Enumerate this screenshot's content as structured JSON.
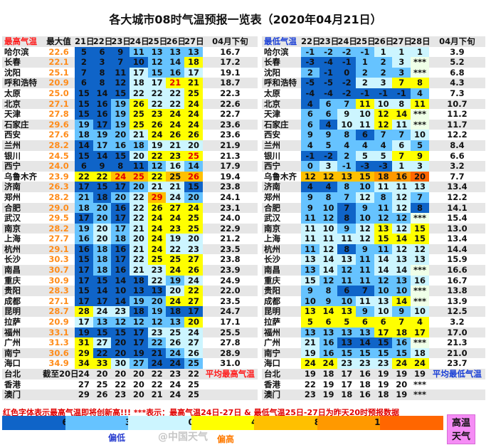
{
  "title": "各大城市08时气温预报一览表（2020年04月21日）",
  "colors": {
    "dark_blue": "#0f64c8",
    "mid_blue": "#66c3ff",
    "light_blue": "#ccf5ff",
    "yellow": "#ffff00",
    "orange1": "#ffc000",
    "orange2": "#ff9900",
    "orange3": "#ff6600",
    "missing": "#efffe8",
    "hot_box": "#f58cf5"
  },
  "high": {
    "header": [
      "最高气温",
      "最大值",
      "21日",
      "22日",
      "23日",
      "24日",
      "25日",
      "26日",
      "27日",
      "04月下旬"
    ],
    "rows": [
      {
        "city": "哈尔滨",
        "max": "22.6",
        "v": [
          5,
          6,
          9,
          11,
          13,
          13,
          13
        ],
        "avg": "16.7",
        "red": []
      },
      {
        "city": "长春",
        "max": "22.1",
        "v": [
          2,
          3,
          7,
          10,
          12,
          14,
          18
        ],
        "avg": "17.2",
        "red": []
      },
      {
        "city": "沈阳",
        "max": "25.1",
        "v": [
          7,
          8,
          11,
          17,
          15,
          16,
          17
        ],
        "avg": "19.1",
        "red": []
      },
      {
        "city": "呼和浩特",
        "max": "20.9",
        "v": [
          6,
          8,
          12,
          18,
          17,
          21,
          21
        ],
        "avg": "18.7",
        "red": [
          5
        ]
      },
      {
        "city": "太原",
        "max": "25.0",
        "v": [
          15,
          14,
          15,
          22,
          22,
          22,
          25
        ],
        "avg": "22.3",
        "red": []
      },
      {
        "city": "北京",
        "max": "27.1",
        "v": [
          15,
          16,
          19,
          26,
          22,
          22,
          24
        ],
        "avg": "22.6",
        "red": []
      },
      {
        "city": "天津",
        "max": "27.8",
        "v": [
          15,
          16,
          19,
          25,
          23,
          24,
          24
        ],
        "avg": "22.7",
        "red": []
      },
      {
        "city": "石家庄",
        "max": "29.6",
        "v": [
          19,
          17,
          19,
          25,
          26,
          24,
          24
        ],
        "avg": "23.6",
        "red": []
      },
      {
        "city": "西安",
        "max": "27.6",
        "v": [
          18,
          19,
          20,
          21,
          24,
          26,
          26
        ],
        "avg": "23.6",
        "red": []
      },
      {
        "city": "兰州",
        "max": "28.2",
        "v": [
          14,
          17,
          16,
          18,
          19,
          21,
          20
        ],
        "avg": "21.9",
        "red": []
      },
      {
        "city": "银川",
        "max": "24.5",
        "v": [
          15,
          14,
          15,
          20,
          22,
          23,
          25
        ],
        "avg": "21.3",
        "red": [
          6
        ]
      },
      {
        "city": "西宁",
        "max": "24.0",
        "v": [
          6,
          9,
          8,
          11,
          12,
          16,
          14
        ],
        "avg": "17.9",
        "red": []
      },
      {
        "city": "乌鲁木齐",
        "max": "23.9",
        "v": [
          22,
          22,
          24,
          25,
          22,
          25,
          26
        ],
        "avg": "19.4",
        "red": [
          2,
          3,
          6
        ]
      },
      {
        "city": "济南",
        "max": "26.3",
        "v": [
          17,
          15,
          17,
          20,
          21,
          21,
          15
        ],
        "avg": "23.8",
        "red": []
      },
      {
        "city": "郑州",
        "max": "28.2",
        "v": [
          21,
          18,
          20,
          22,
          29,
          24,
          20
        ],
        "avg": "24.1",
        "red": [
          4
        ]
      },
      {
        "city": "合肥",
        "max": "29.0",
        "v": [
          18,
          20,
          16,
          22,
          26,
          27,
          24
        ],
        "avg": "23.1",
        "red": []
      },
      {
        "city": "武汉",
        "max": "29.5",
        "v": [
          17,
          20,
          17,
          22,
          24,
          24,
          25
        ],
        "avg": "24.0",
        "red": []
      },
      {
        "city": "南京",
        "max": "28.2",
        "v": [
          19,
          20,
          17,
          21,
          24,
          23,
          25
        ],
        "avg": "22.9",
        "red": []
      },
      {
        "city": "上海",
        "max": "27.7",
        "v": [
          16,
          20,
          18,
          20,
          24,
          19,
          20
        ],
        "avg": "21.2",
        "red": []
      },
      {
        "city": "杭州",
        "max": "29.1",
        "v": [
          16,
          18,
          16,
          21,
          24,
          22,
          23
        ],
        "avg": "23.5",
        "red": []
      },
      {
        "city": "长沙",
        "max": "30.3",
        "v": [
          15,
          18,
          17,
          22,
          25,
          25,
          27
        ],
        "avg": "23.8",
        "red": []
      },
      {
        "city": "南昌",
        "max": "30.7",
        "v": [
          17,
          18,
          16,
          21,
          23,
          24,
          26
        ],
        "avg": "23.9",
        "red": []
      },
      {
        "city": "重庆",
        "max": "30.9",
        "v": [
          17,
          15,
          14,
          18,
          22,
          19,
          24
        ],
        "avg": "24.9",
        "red": []
      },
      {
        "city": "贵阳",
        "max": "28.3",
        "v": [
          15,
          14,
          10,
          13,
          13,
          20,
          22
        ],
        "avg": "22.0",
        "red": []
      },
      {
        "city": "成都",
        "max": "27.1",
        "v": [
          17,
          17,
          14,
          19,
          20,
          24,
          27
        ],
        "avg": "23.5",
        "red": []
      },
      {
        "city": "昆明",
        "max": "28.7",
        "v": [
          28,
          24,
          23,
          18,
          19,
          18,
          17
        ],
        "avg": "24.7",
        "red": []
      },
      {
        "city": "拉萨",
        "max": "20.9",
        "v": [
          17,
          13,
          12,
          12,
          12,
          13,
          20
        ],
        "avg": "17.1",
        "red": []
      },
      {
        "city": "福州",
        "max": "33.1",
        "v": [
          19,
          15,
          15,
          17,
          23,
          25,
          24
        ],
        "avg": "25.5",
        "red": []
      },
      {
        "city": "广州",
        "max": "31.3",
        "v": [
          31,
          27,
          20,
          17,
          22,
          26,
          27
        ],
        "avg": "27.8",
        "red": []
      },
      {
        "city": "南宁",
        "max": "30.6",
        "v": [
          29,
          22,
          20,
          19,
          21,
          24,
          26
        ],
        "avg": "28.9",
        "red": []
      },
      {
        "city": "海口",
        "max": "34.9",
        "v": [
          34,
          33,
          30,
          27,
          24,
          24,
          25
        ],
        "avg": "31.0",
        "red": []
      },
      {
        "city": "台北",
        "max": "截至20日",
        "v": [
          24,
          20,
          20,
          20,
          22,
          23,
          22
        ],
        "avg": "平均最高气温",
        "plain": true
      },
      {
        "city": "香港",
        "max": "",
        "v": [
          27,
          25,
          22,
          20,
          22,
          24,
          25
        ],
        "avg": "",
        "plain": true
      },
      {
        "city": "澳门",
        "max": "",
        "v": [
          29,
          26,
          23,
          20,
          21,
          24,
          25
        ],
        "avg": "",
        "plain": true
      }
    ]
  },
  "low": {
    "header": [
      "最低气温",
      "22日",
      "23日",
      "24日",
      "25日",
      "26日",
      "27日",
      "28日",
      "04月下旬"
    ],
    "rows": [
      {
        "city": "哈尔滨",
        "v": [
          -1,
          -2,
          -2,
          -1,
          1,
          1,
          1
        ],
        "avg": "3.9"
      },
      {
        "city": "长春",
        "v": [
          -3,
          -4,
          -1,
          1,
          2,
          3,
          "***"
        ],
        "avg": "5.2"
      },
      {
        "city": "沈阳",
        "v": [
          2,
          -1,
          0,
          2,
          2,
          3,
          "***"
        ],
        "avg": "6.8"
      },
      {
        "city": "呼和浩特",
        "v": [
          -5,
          -5,
          -2,
          2,
          3,
          7,
          8
        ],
        "avg": "4.3"
      },
      {
        "city": "太原",
        "v": [
          -4,
          -4,
          -2,
          -1,
          -1,
          -1,
          4
        ],
        "avg": "7.3"
      },
      {
        "city": "北京",
        "v": [
          4,
          6,
          7,
          11,
          10,
          8,
          11
        ],
        "avg": "10.7"
      },
      {
        "city": "天津",
        "v": [
          6,
          6,
          9,
          10,
          12,
          14,
          "***"
        ],
        "avg": "11.2"
      },
      {
        "city": "石家庄",
        "v": [
          6,
          4,
          10,
          11,
          12,
          11,
          "***"
        ],
        "avg": "11.7"
      },
      {
        "city": "西安",
        "v": [
          9,
          9,
          8,
          6,
          7,
          7,
          10
        ],
        "avg": "12.2"
      },
      {
        "city": "兰州",
        "v": [
          4,
          5,
          4,
          4,
          4,
          6,
          5
        ],
        "avg": "8.4"
      },
      {
        "city": "银川",
        "v": [
          -1,
          -2,
          2,
          5,
          5,
          7,
          9
        ],
        "avg": "6.6"
      },
      {
        "city": "西宁",
        "v": [
          0,
          3,
          -1,
          -3,
          -3,
          1,
          3
        ],
        "avg": "3.2"
      },
      {
        "city": "乌鲁木齐",
        "v": [
          12,
          12,
          13,
          15,
          18,
          16,
          20
        ],
        "avg": "7.7"
      },
      {
        "city": "济南",
        "v": [
          4,
          4,
          8,
          10,
          11,
          11,
          13
        ],
        "avg": "13.4"
      },
      {
        "city": "郑州",
        "v": [
          9,
          8,
          7,
          12,
          8,
          12,
          7
        ],
        "avg": "12.2"
      },
      {
        "city": "合肥",
        "v": [
          9,
          10,
          7,
          9,
          11,
          12,
          8
        ],
        "avg": "14.1"
      },
      {
        "city": "武汉",
        "v": [
          11,
          12,
          8,
          10,
          12,
          12,
          "***"
        ],
        "avg": "15.4"
      },
      {
        "city": "南京",
        "v": [
          11,
          10,
          9,
          12,
          13,
          12,
          15
        ],
        "avg": "13.0"
      },
      {
        "city": "上海",
        "v": [
          11,
          11,
          11,
          12,
          15,
          14,
          15
        ],
        "avg": "13.4"
      },
      {
        "city": "杭州",
        "v": [
          11,
          12,
          8,
          9,
          11,
          12,
          12
        ],
        "avg": "14.4"
      },
      {
        "city": "长沙",
        "v": [
          13,
          14,
          13,
          11,
          14,
          13,
          13
        ],
        "avg": "15.9"
      },
      {
        "city": "南昌",
        "v": [
          13,
          14,
          12,
          11,
          14,
          14,
          "***"
        ],
        "avg": "16.6"
      },
      {
        "city": "重庆",
        "v": [
          15,
          12,
          11,
          11,
          12,
          13,
          16
        ],
        "avg": "16.7"
      },
      {
        "city": "贵阳",
        "v": [
          9,
          8,
          6,
          7,
          10,
          10,
          "***"
        ],
        "avg": "13.8"
      },
      {
        "city": "成都",
        "v": [
          10,
          9,
          10,
          11,
          13,
          14,
          "***"
        ],
        "avg": "13.9"
      },
      {
        "city": "昆明",
        "v": [
          13,
          14,
          13,
          9,
          10,
          9,
          10
        ],
        "avg": "12.5"
      },
      {
        "city": "拉萨",
        "v": [
          5,
          6,
          5,
          6,
          6,
          7,
          4
        ],
        "avg": "3.2"
      },
      {
        "city": "福州",
        "v": [
          13,
          13,
          13,
          13,
          17,
          18,
          17
        ],
        "avg": "17.0"
      },
      {
        "city": "广州",
        "v": [
          21,
          16,
          13,
          14,
          15,
          16,
          "***"
        ],
        "avg": "21.3"
      },
      {
        "city": "南宁",
        "v": [
          19,
          16,
          15,
          15,
          15,
          15,
          18
        ],
        "avg": "21.0"
      },
      {
        "city": "海口",
        "v": [
          24,
          24,
          23,
          23,
          23,
          24,
          24
        ],
        "avg": "23.7"
      },
      {
        "city": "台北",
        "v": [
          19,
          18,
          17,
          16,
          19,
          19,
          19
        ],
        "avg": "平均最低气温",
        "plain": true
      },
      {
        "city": "香港",
        "v": [
          22,
          19,
          17,
          18,
          19,
          20,
          "***"
        ],
        "avg": "",
        "plain": true
      },
      {
        "city": "澳门",
        "v": [
          23,
          19,
          18,
          16,
          18,
          19,
          "***"
        ],
        "avg": "",
        "plain": true
      }
    ]
  },
  "note": "红色字体表示最高气温即将创新高!!! ***表示：最高气温24日-27日 & 最低气温25日-27日为昨天20时预报数据",
  "legend": {
    "ticks": [
      "6",
      "3",
      "0",
      "4",
      "8",
      "12",
      ""
    ],
    "low_label": "偏低",
    "high_label": "偏高",
    "hot_box": "高温天气"
  },
  "watermark": "@中国天气"
}
